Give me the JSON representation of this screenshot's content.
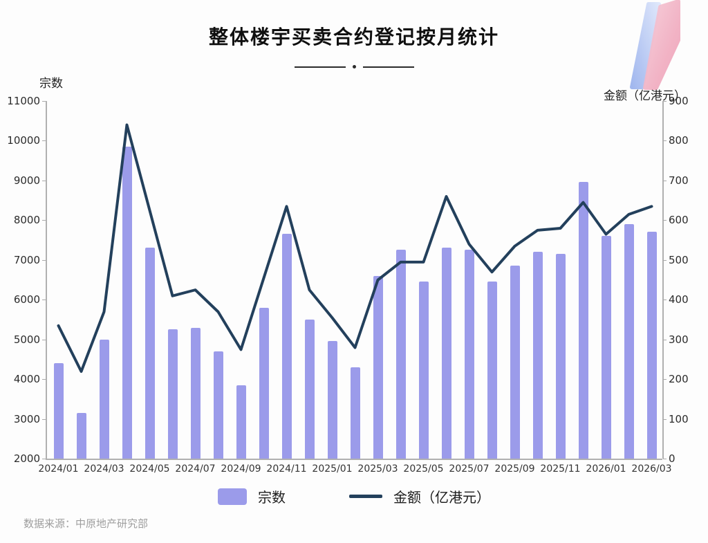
{
  "header": {
    "title": "整体楼宇买卖合约登记按月统计"
  },
  "axes": {
    "left_unit": "宗数",
    "right_unit": "金额（亿港元）"
  },
  "legend": {
    "bars_label": "宗数",
    "line_label": "金额（亿港元）"
  },
  "footer": {
    "source": "数据来源：中原地产研究部"
  },
  "colors": {
    "bar": "#9b9bea",
    "line": "#23405c",
    "axis": "#b0b0b0",
    "logo_blue": "#9db4ee",
    "logo_pink": "#ef9fb6"
  },
  "chart_data": {
    "type": "bar",
    "combo": "bar+line dual axis",
    "title": "整体楼宇买卖合约登记按月统计",
    "categories": [
      "2024/01",
      "2024/02",
      "2024/03",
      "2024/04",
      "2024/05",
      "2024/06",
      "2024/07",
      "2024/08",
      "2024/09",
      "2024/10",
      "2024/11",
      "2024/12",
      "2025/01",
      "2025/02",
      "2025/03",
      "2025/04",
      "2025/05",
      "2025/06",
      "2025/07",
      "2025/08",
      "2025/09",
      "2025/10",
      "2025/11",
      "2025/12",
      "2026/01",
      "2026/02",
      "2026/03"
    ],
    "x_tick_labels": [
      "2024/01",
      "2024/03",
      "2024/05",
      "2024/07",
      "2024/09",
      "2024/11",
      "2025/01",
      "2025/03",
      "2025/05",
      "2025/07",
      "2025/09",
      "2025/11",
      "2026/01",
      "2026/03"
    ],
    "series": [
      {
        "name": "宗数",
        "type": "bar",
        "axis": "left",
        "values": [
          4400,
          3150,
          5000,
          9850,
          7300,
          5250,
          5280,
          4700,
          3850,
          5800,
          7650,
          5500,
          4950,
          4300,
          6600,
          7250,
          6450,
          7300,
          7250,
          6450,
          6850,
          7200,
          7150,
          8950,
          7600,
          7900,
          7700
        ]
      },
      {
        "name": "金额（亿港元）",
        "type": "line",
        "axis": "right",
        "values": [
          335,
          220,
          370,
          840,
          625,
          410,
          425,
          370,
          275,
          455,
          635,
          425,
          355,
          280,
          450,
          495,
          495,
          660,
          540,
          470,
          535,
          575,
          580,
          645,
          565,
          615,
          635
        ]
      }
    ],
    "left_axis": {
      "label": "宗数",
      "min": 2000,
      "max": 11000,
      "step": 1000
    },
    "right_axis": {
      "label": "金额（亿港元）",
      "min": 0,
      "max": 900,
      "step": 100
    },
    "grid": false,
    "legend_position": "bottom",
    "source": "数据来源：中原地产研究部"
  }
}
